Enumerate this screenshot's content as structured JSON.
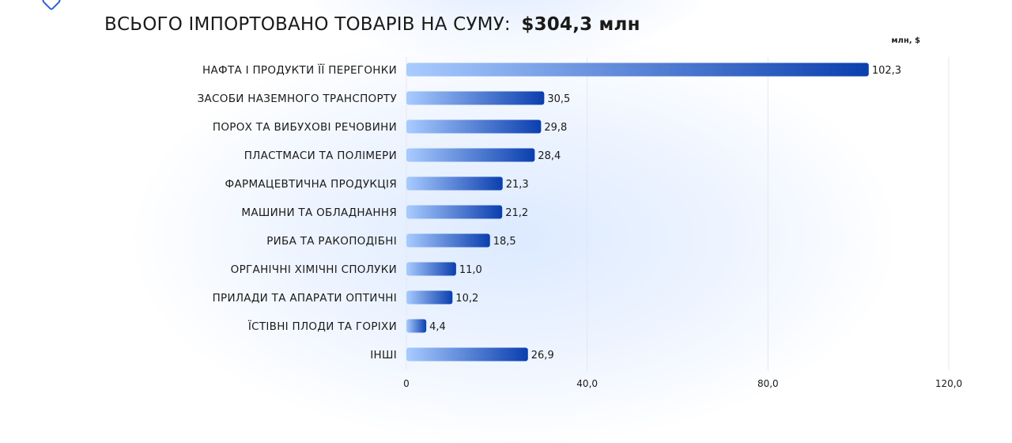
{
  "header": {
    "title_lead": "ВСЬОГО ІМПОРТОВАНО ТОВАРІВ НА СУМУ:",
    "title_total": "$304,3 млн",
    "unit_label": "млн, $"
  },
  "colors": {
    "bar_start": "#a9cbff",
    "bar_end": "#0b3fae",
    "grid": "#e3e8f0",
    "text": "#1a1a1a"
  },
  "chart_data": {
    "type": "bar",
    "orientation": "horizontal",
    "title": "ВСЬОГО ІМПОРТОВАНО ТОВАРІВ НА СУМУ: $304,3 млн",
    "unit": "млн, $",
    "categories": [
      "НАФТА І ПРОДУКТИ ЇЇ ПЕРЕГОНКИ",
      "ЗАСОБИ НАЗЕМНОГО ТРАНСПОРТУ",
      "ПОРОХ ТА ВИБУХОВІ РЕЧОВИНИ",
      "ПЛАСТМАСИ ТА ПОЛІМЕРИ",
      "ФАРМАЦЕВТИЧНА ПРОДУКЦІЯ",
      "МАШИНИ ТА ОБЛАДНАННЯ",
      "РИБА ТА РАКОПОДІБНІ",
      "ОРГАНІЧНІ ХІМІЧНІ СПОЛУКИ",
      "ПРИЛАДИ ТА АПАРАТИ ОПТИЧНІ",
      "ЇСТІВНІ ПЛОДИ ТА ГОРІХИ",
      "ІНШІ"
    ],
    "values": [
      102.3,
      30.5,
      29.8,
      28.4,
      21.3,
      21.2,
      18.5,
      11.0,
      10.2,
      4.4,
      26.9
    ],
    "value_labels": [
      "102,3",
      "30,5",
      "29,8",
      "28,4",
      "21,3",
      "21,2",
      "18,5",
      "11,0",
      "10,2",
      "4,4",
      "26,9"
    ],
    "xlim": [
      0,
      120
    ],
    "x_ticks": [
      0,
      40,
      80,
      120
    ],
    "x_tick_labels": [
      "0",
      "40,0",
      "80,0",
      "120,0"
    ],
    "grid": true,
    "legend": "none"
  }
}
